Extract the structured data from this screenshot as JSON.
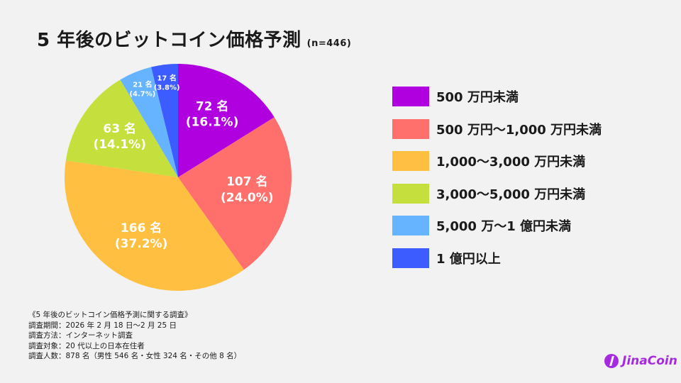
{
  "title": "5 年後のビットコイン価格予測",
  "sample": "(n=446)",
  "chart_data": {
    "type": "pie",
    "title": "5 年後のビットコイン価格予測",
    "start": "top, clockwise",
    "legend_position": "right",
    "slices": [
      {
        "label": "500 万円未満",
        "count": 72,
        "count_label": "72 名",
        "percent_label": "(16.1%)",
        "value": 16.1,
        "color": "#b000e0"
      },
      {
        "label": "500 万円〜1,000 万円未満",
        "count": 107,
        "count_label": "107 名",
        "percent_label": "(24.0%)",
        "value": 24.0,
        "color": "#ff6f6c"
      },
      {
        "label": "1,000〜3,000 万円未満",
        "count": 166,
        "count_label": "166 名",
        "percent_label": "(37.2%)",
        "value": 37.2,
        "color": "#ffbf40"
      },
      {
        "label": "3,000〜5,000 万円未満",
        "count": 63,
        "count_label": "63 名",
        "percent_label": "(14.1%)",
        "value": 14.1,
        "color": "#c5e03c"
      },
      {
        "label": "5,000 万〜1 億円未満",
        "count": 21,
        "count_label": "21 名",
        "percent_label": "(4.7%)",
        "value": 4.7,
        "color": "#66b3ff"
      },
      {
        "label": "1 億円以上",
        "count": 17,
        "count_label": "17 名",
        "percent_label": "(3.8%)",
        "value": 3.8,
        "color": "#3d5cff"
      }
    ]
  },
  "notes": [
    "《5 年後のビットコイン価格予測に関する調査》",
    "調査期間：2026 年 2 月 18 日〜2 月 25 日",
    "調査方法：インターネット調査",
    "調査対象：20 代以上の日本在住者",
    "調査人数：878 名（男性 546 名・女性 324 名・その他 8 名）"
  ],
  "logo": "JinaCoin"
}
